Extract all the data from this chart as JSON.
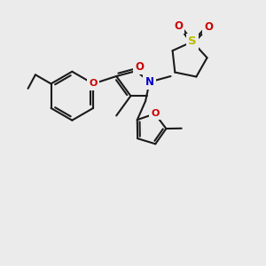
{
  "bg_color": "#ebebeb",
  "bond_color": "#1a1a1a",
  "atom_colors": {
    "O": "#cc0000",
    "N": "#0000cc",
    "S": "#bbbb00"
  },
  "bond_lw": 1.5,
  "font_size": 8.5
}
